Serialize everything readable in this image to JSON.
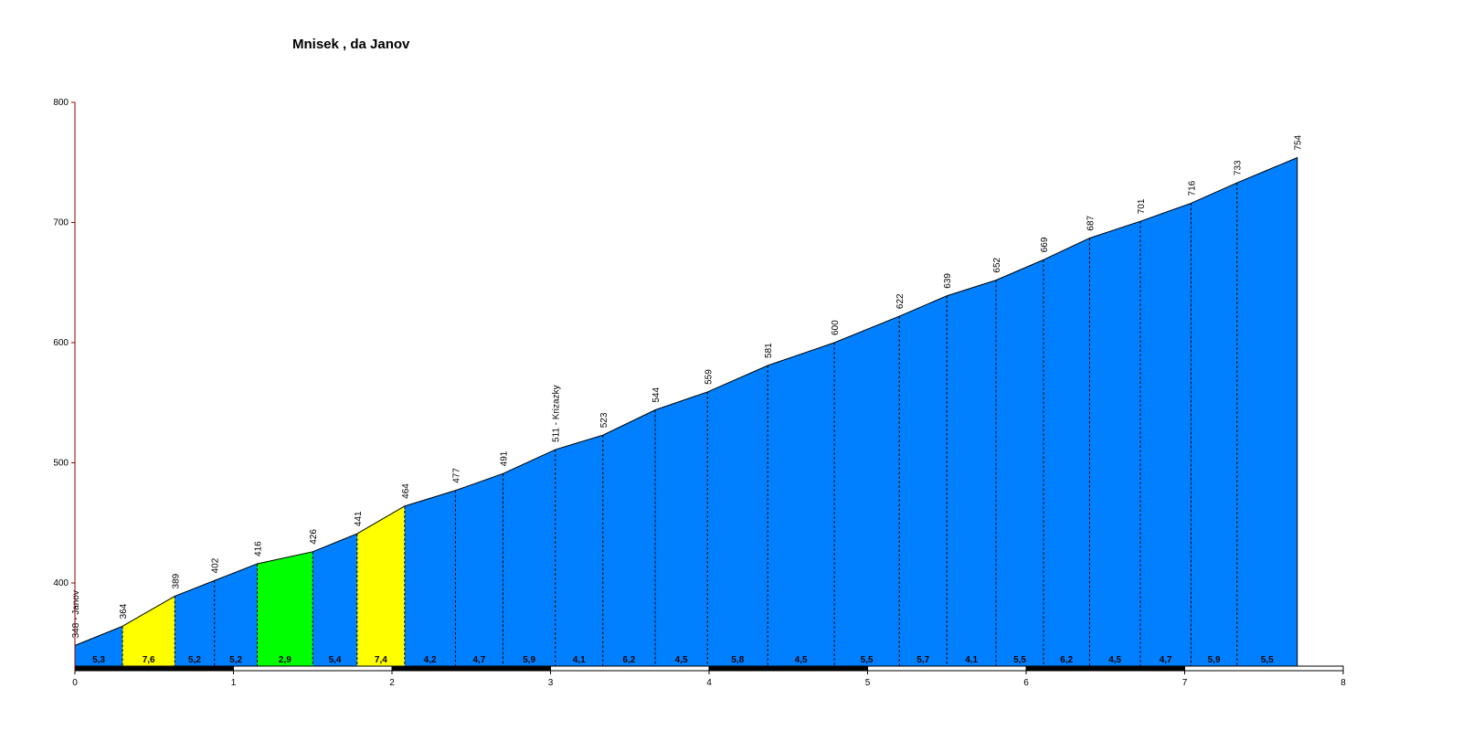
{
  "chart_data": {
    "type": "area",
    "title": "Mnisek , da Janov",
    "xlim": [
      0,
      8
    ],
    "ylim": [
      330,
      800
    ],
    "x_ticks": [
      0,
      1,
      2,
      3,
      4,
      5,
      6,
      7,
      8
    ],
    "y_ticks": [
      400,
      500,
      600,
      700,
      800
    ],
    "points": [
      {
        "x": 0.0,
        "y": 348,
        "label": "348 - Janov"
      },
      {
        "x": 0.3,
        "y": 364,
        "label": "364"
      },
      {
        "x": 0.63,
        "y": 389,
        "label": "389"
      },
      {
        "x": 0.88,
        "y": 402,
        "label": "402"
      },
      {
        "x": 1.15,
        "y": 416,
        "label": "416"
      },
      {
        "x": 1.5,
        "y": 426,
        "label": "426"
      },
      {
        "x": 1.78,
        "y": 441,
        "label": "441"
      },
      {
        "x": 2.08,
        "y": 464,
        "label": "464"
      },
      {
        "x": 2.4,
        "y": 477,
        "label": "477"
      },
      {
        "x": 2.7,
        "y": 491,
        "label": "491"
      },
      {
        "x": 3.03,
        "y": 511,
        "label": "511 - Krizazky"
      },
      {
        "x": 3.33,
        "y": 523,
        "label": "523"
      },
      {
        "x": 3.66,
        "y": 544,
        "label": "544"
      },
      {
        "x": 3.99,
        "y": 559,
        "label": "559"
      },
      {
        "x": 4.37,
        "y": 581,
        "label": "581"
      },
      {
        "x": 4.79,
        "y": 600,
        "label": "600"
      },
      {
        "x": 5.2,
        "y": 622,
        "label": "622"
      },
      {
        "x": 5.5,
        "y": 639,
        "label": "639"
      },
      {
        "x": 5.81,
        "y": 652,
        "label": "652"
      },
      {
        "x": 6.11,
        "y": 669,
        "label": "669"
      },
      {
        "x": 6.4,
        "y": 687,
        "label": "687"
      },
      {
        "x": 6.72,
        "y": 701,
        "label": "701"
      },
      {
        "x": 7.04,
        "y": 716,
        "label": "716"
      },
      {
        "x": 7.33,
        "y": 733,
        "label": "733"
      },
      {
        "x": 7.71,
        "y": 754,
        "label": "754"
      }
    ],
    "segment_gradients": [
      "5,3",
      "7,6",
      "5,2",
      "5,2",
      "2,9",
      "5,4",
      "7,4",
      "4,2",
      "4,7",
      "5,9",
      "4,1",
      "6,2",
      "4,5",
      "5,8",
      "4,5",
      "5,5",
      "5,7",
      "4,1",
      "5,5",
      "6,2",
      "4,5",
      "4,7",
      "5,9",
      "5,5"
    ],
    "segment_colors": [
      "#0080ff",
      "#ffff00",
      "#0080ff",
      "#0080ff",
      "#00ff00",
      "#0080ff",
      "#ffff00",
      "#0080ff",
      "#0080ff",
      "#0080ff",
      "#0080ff",
      "#0080ff",
      "#0080ff",
      "#0080ff",
      "#0080ff",
      "#0080ff",
      "#0080ff",
      "#0080ff",
      "#0080ff",
      "#0080ff",
      "#0080ff",
      "#0080ff",
      "#0080ff",
      "#0080ff"
    ],
    "km_bar_colors": [
      "#000000",
      "#ffffff",
      "#000000",
      "#ffffff",
      "#000000",
      "#ffffff",
      "#000000",
      "#ffffff"
    ]
  }
}
